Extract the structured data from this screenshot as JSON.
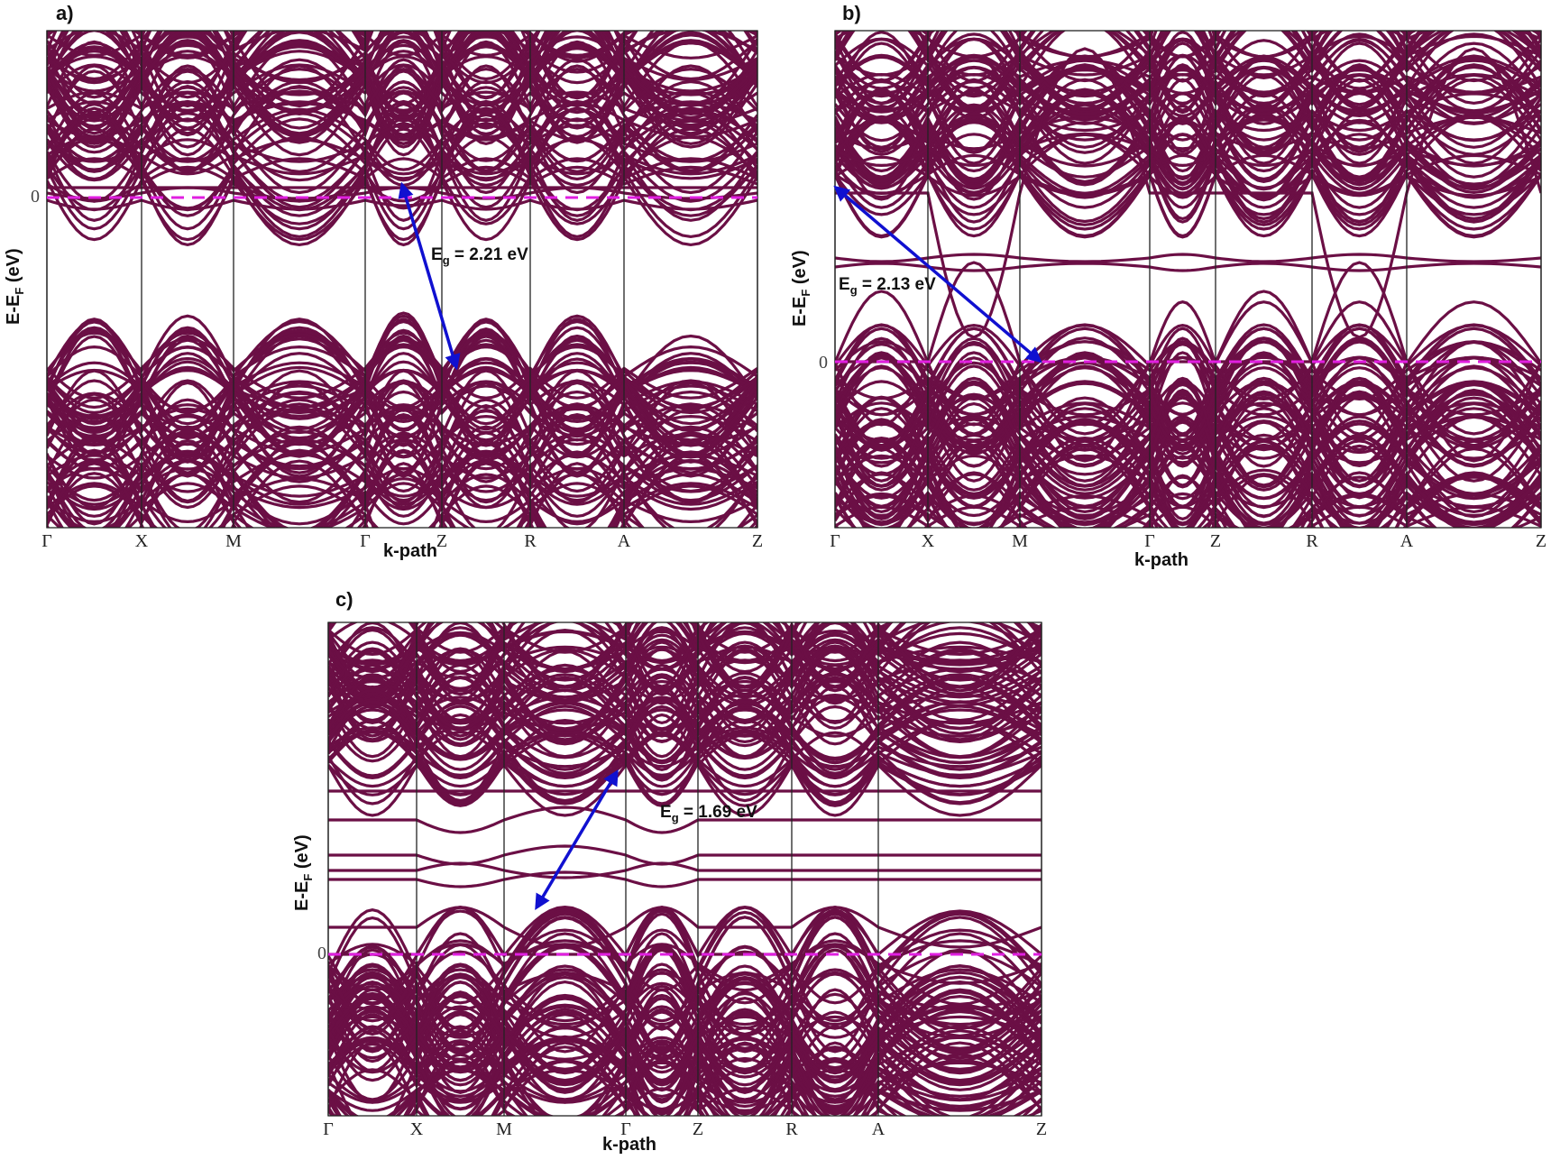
{
  "figure": {
    "band_color": "#6b0f45",
    "fermi_color": "#e020e0",
    "arrow_color": "#1010d0",
    "grid_color": "#222222"
  },
  "panels": [
    {
      "label": "a)",
      "xlabel": "k-path",
      "ylabel_main": "E-E",
      "ylabel_sub": "F",
      "ylabel_unit": " (eV)",
      "zero_tick": "0",
      "kpoints": [
        "Γ",
        "X",
        "M",
        "Γ",
        "Z",
        "R",
        "A",
        "Z"
      ],
      "gap_symbol": "E",
      "gap_sub": "g",
      "gap_text": " = 2.21 eV"
    },
    {
      "label": "b)",
      "xlabel": "k-path",
      "ylabel_main": "E-E",
      "ylabel_sub": "F",
      "ylabel_unit": " (eV)",
      "zero_tick": "0",
      "kpoints": [
        "Γ",
        "X",
        "M",
        "Γ",
        "Z",
        "R",
        "A",
        "Z"
      ],
      "gap_symbol": "E",
      "gap_sub": "g",
      "gap_text": " = 2.13 eV"
    },
    {
      "label": "c)",
      "xlabel": "k-path",
      "ylabel_main": "E-E",
      "ylabel_sub": "F",
      "ylabel_unit": " (eV)",
      "zero_tick": "0",
      "kpoints": [
        "Γ",
        "X",
        "M",
        "Γ",
        "Z",
        "R",
        "A",
        "Z"
      ],
      "gap_symbol": "E",
      "gap_sub": "g",
      "gap_text": " = 1.69 eV"
    }
  ],
  "chart_data": [
    {
      "type": "line",
      "title": "a)",
      "xlabel": "k-path",
      "ylabel": "E-E_F (eV)",
      "x_ticks": [
        "Γ",
        "X",
        "M",
        "Γ",
        "Z",
        "R",
        "A",
        "Z"
      ],
      "y_ticks": [
        "0"
      ],
      "fermi_level": 0,
      "band_gap_eV": 2.21,
      "annotation": "E_g = 2.21 eV",
      "gap_arrow": {
        "from": "conduction band minimum near Γ (top, ~0 eV)",
        "to": "valence band maximum near Z (below)"
      },
      "grid": true,
      "legend": null
    },
    {
      "type": "line",
      "title": "b)",
      "xlabel": "k-path",
      "ylabel": "E-E_F (eV)",
      "x_ticks": [
        "Γ",
        "X",
        "M",
        "Γ",
        "Z",
        "R",
        "A",
        "Z"
      ],
      "y_ticks": [
        "0"
      ],
      "fermi_level": 0,
      "band_gap_eV": 2.13,
      "annotation": "E_g = 2.13 eV",
      "gap_arrow": {
        "from": "conduction band at Γ",
        "to": "valence band near M (at 0 eV)"
      },
      "grid": true,
      "legend": null
    },
    {
      "type": "line",
      "title": "c)",
      "xlabel": "k-path",
      "ylabel": "E-E_F (eV)",
      "x_ticks": [
        "Γ",
        "X",
        "M",
        "Γ",
        "Z",
        "R",
        "A",
        "Z"
      ],
      "y_ticks": [
        "0"
      ],
      "fermi_level": 0,
      "band_gap_eV": 1.69,
      "annotation": "E_g = 1.69 eV",
      "gap_arrow": {
        "from": "valence band maximum between M and Γ",
        "to": "conduction band minimum near Γ–Z"
      },
      "grid": true,
      "legend": null
    }
  ]
}
